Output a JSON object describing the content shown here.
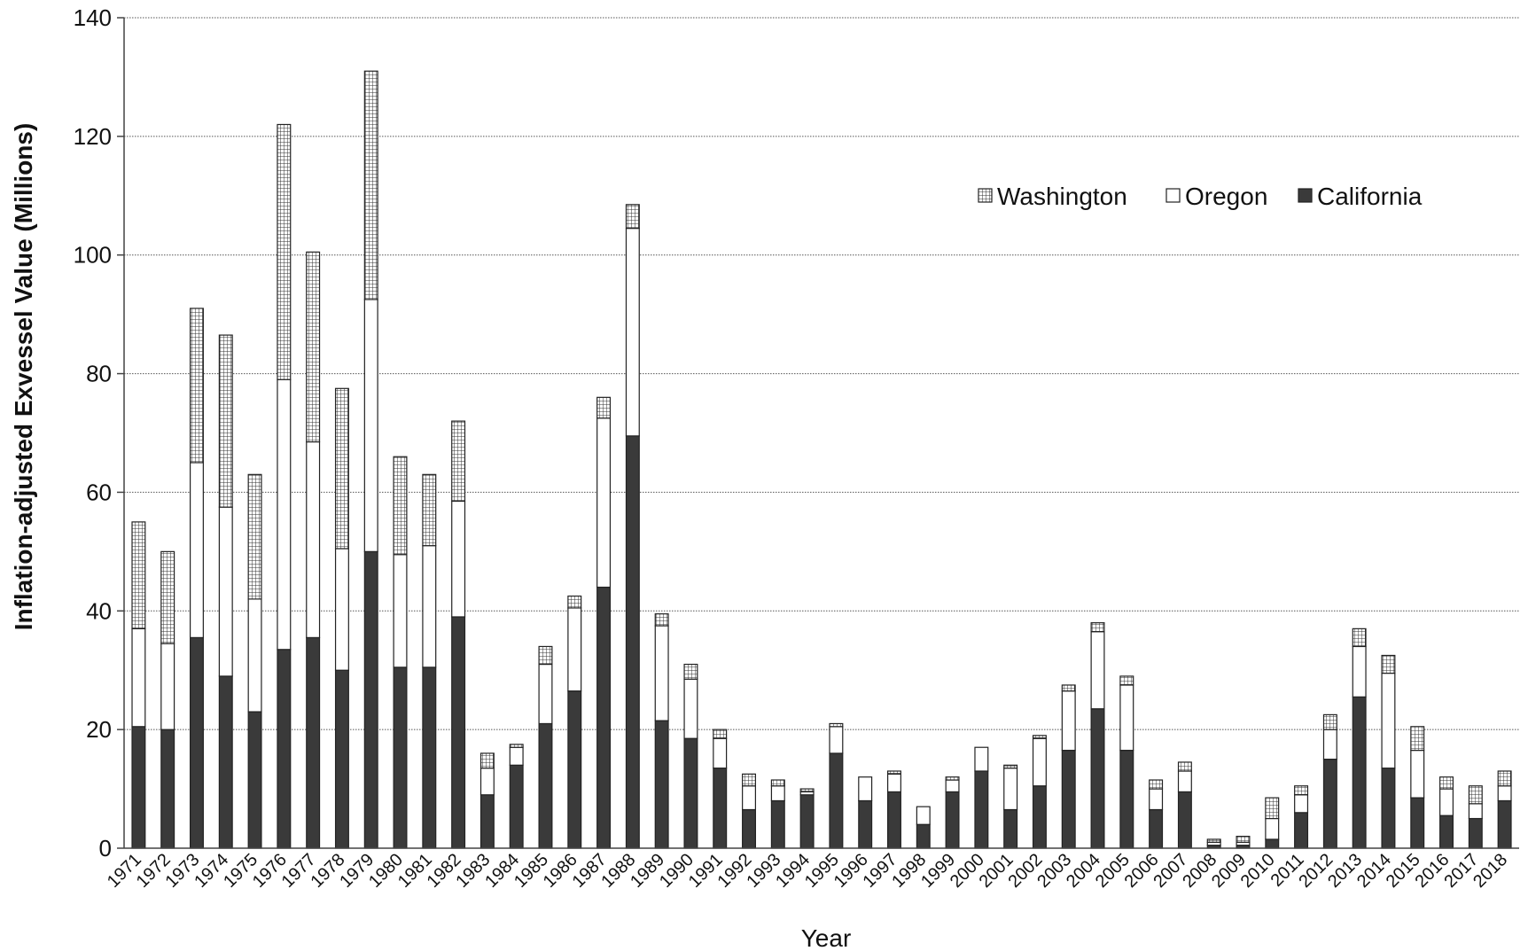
{
  "chart_data": {
    "type": "bar",
    "stacked": true,
    "title": "",
    "xlabel": "Year",
    "ylabel": "Inflation-adjusted Exvessel Value (Millions)",
    "ylim": [
      0,
      140
    ],
    "yticks": [
      0,
      20,
      40,
      60,
      80,
      100,
      120,
      140
    ],
    "grid": "horizontal dotted",
    "legend_position": "top-right",
    "categories": [
      "1971",
      "1972",
      "1973",
      "1974",
      "1975",
      "1976",
      "1977",
      "1978",
      "1979",
      "1980",
      "1981",
      "1982",
      "1983",
      "1984",
      "1985",
      "1986",
      "1987",
      "1988",
      "1989",
      "1990",
      "1991",
      "1992",
      "1993",
      "1994",
      "1995",
      "1996",
      "1997",
      "1998",
      "1999",
      "2000",
      "2001",
      "2002",
      "2003",
      "2004",
      "2005",
      "2006",
      "2007",
      "2008",
      "2009",
      "2010",
      "2011",
      "2012",
      "2013",
      "2014",
      "2015",
      "2016",
      "2017",
      "2018"
    ],
    "series": [
      {
        "name": "California",
        "color": "#3a3a3a",
        "pattern": "solid",
        "values": [
          20.5,
          20,
          35.5,
          29,
          23,
          33.5,
          35.5,
          30,
          50,
          30.5,
          30.5,
          39,
          9,
          14,
          21,
          26.5,
          44,
          69.5,
          21.5,
          18.5,
          13.5,
          6.5,
          8,
          9,
          16,
          8,
          9.5,
          4,
          9.5,
          13,
          6.5,
          10.5,
          16.5,
          23.5,
          16.5,
          6.5,
          9.5,
          0.5,
          0.5,
          1.5,
          6,
          15,
          25.5,
          13.5,
          8.5,
          5.5,
          5,
          8
        ]
      },
      {
        "name": "Oregon",
        "color": "#ffffff",
        "pattern": "solid",
        "values": [
          16.5,
          14.5,
          29.5,
          28.5,
          19,
          45.5,
          33,
          20.5,
          42.5,
          19,
          20.5,
          19.5,
          4.5,
          3,
          10,
          14,
          28.5,
          35,
          16,
          10,
          5,
          4,
          2.5,
          0.5,
          4.5,
          4,
          3,
          3,
          2,
          4,
          7,
          8,
          10,
          13,
          11,
          3.5,
          3.5,
          0.5,
          0.5,
          3.5,
          3,
          5,
          8.5,
          16,
          8,
          4.5,
          2.5,
          2.5
        ]
      },
      {
        "name": "Washington",
        "color": "#ffffff",
        "pattern": "grid",
        "values": [
          18,
          15.5,
          26,
          29,
          21,
          43,
          32,
          27,
          38.5,
          16.5,
          12,
          13.5,
          2.5,
          0.5,
          3,
          2,
          3.5,
          4,
          2,
          2.5,
          1.5,
          2,
          1,
          0.5,
          0.5,
          0,
          0.5,
          0,
          0.5,
          0,
          0.5,
          0.5,
          1,
          1.5,
          1.5,
          1.5,
          1.5,
          0.5,
          1,
          3.5,
          1.5,
          2.5,
          3,
          3,
          4,
          2,
          3,
          2.5
        ]
      }
    ]
  }
}
